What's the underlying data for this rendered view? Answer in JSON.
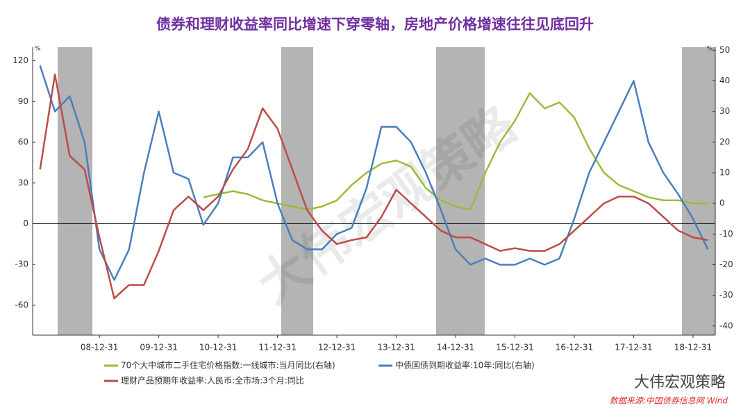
{
  "chart_data": {
    "type": "line",
    "title": "债券和理财收益率同比增速下穿零轴，房地产价格增速往往见底回升",
    "y_unit": "%",
    "y2_unit": "%",
    "categories": [
      null,
      null,
      null,
      null,
      "08-12-31",
      null,
      null,
      null,
      "09-12-31",
      null,
      null,
      null,
      "10-12-31",
      null,
      null,
      null,
      "11-12-31",
      null,
      null,
      null,
      "12-12-31",
      null,
      null,
      null,
      "13-12-31",
      null,
      null,
      null,
      "14-12-31",
      null,
      null,
      null,
      "15-12-31",
      null,
      null,
      null,
      "16-12-31",
      null,
      null,
      null,
      "17-12-31",
      null,
      null,
      null,
      "18-12-31",
      null
    ],
    "ylim": [
      -82,
      130
    ],
    "yticks": [
      -60,
      -30,
      0,
      30,
      60,
      90,
      120
    ],
    "y2lim": [
      -43,
      51
    ],
    "y2ticks": [
      -40,
      -30,
      -20,
      -10,
      0,
      10,
      20,
      30,
      40,
      50
    ],
    "zero_line": true,
    "series": [
      {
        "name": "70个大中城市二手住宅价格指数:一线城市:当月同比(右轴)",
        "color": "#9bbb3b",
        "axis": "y2",
        "values": [
          null,
          null,
          null,
          null,
          null,
          null,
          null,
          null,
          null,
          null,
          null,
          2,
          3,
          4,
          3,
          1,
          0,
          -1,
          -2,
          -1,
          1,
          6,
          10,
          13,
          14,
          12,
          5,
          1,
          -1,
          -2,
          10,
          20,
          27,
          36,
          31,
          33,
          28,
          18,
          10,
          6,
          4,
          2,
          1,
          1,
          0,
          0
        ]
      },
      {
        "name": "中债国债到期收益率:10年:同比(右轴)",
        "color": "#4a7ebb",
        "axis": "y2",
        "values": [
          45,
          30,
          35,
          20,
          -15,
          -25,
          -15,
          10,
          30,
          10,
          8,
          -7,
          0,
          15,
          15,
          20,
          0,
          -12,
          -15,
          -15,
          -10,
          -8,
          5,
          25,
          25,
          20,
          10,
          -2,
          -15,
          -20,
          -18,
          -20,
          -20,
          -18,
          -20,
          -18,
          -5,
          10,
          20,
          30,
          40,
          20,
          10,
          3,
          -5,
          -15
        ]
      },
      {
        "name": "理财产品预期年收益率:人民币:全市场:3个月:同比",
        "color": "#be4b48",
        "values": [
          40,
          110,
          50,
          40,
          -10,
          -55,
          -45,
          -45,
          -20,
          10,
          20,
          10,
          20,
          40,
          55,
          85,
          70,
          40,
          10,
          -5,
          -15,
          -12,
          -10,
          5,
          25,
          15,
          5,
          -5,
          -10,
          -10,
          -15,
          -20,
          -18,
          -20,
          -20,
          -15,
          -5,
          5,
          15,
          20,
          20,
          15,
          5,
          -5,
          -10,
          -12
        ]
      }
    ],
    "brand": "大伟宏观策略",
    "source": "数据来源:中国债券信息网 Wind"
  }
}
